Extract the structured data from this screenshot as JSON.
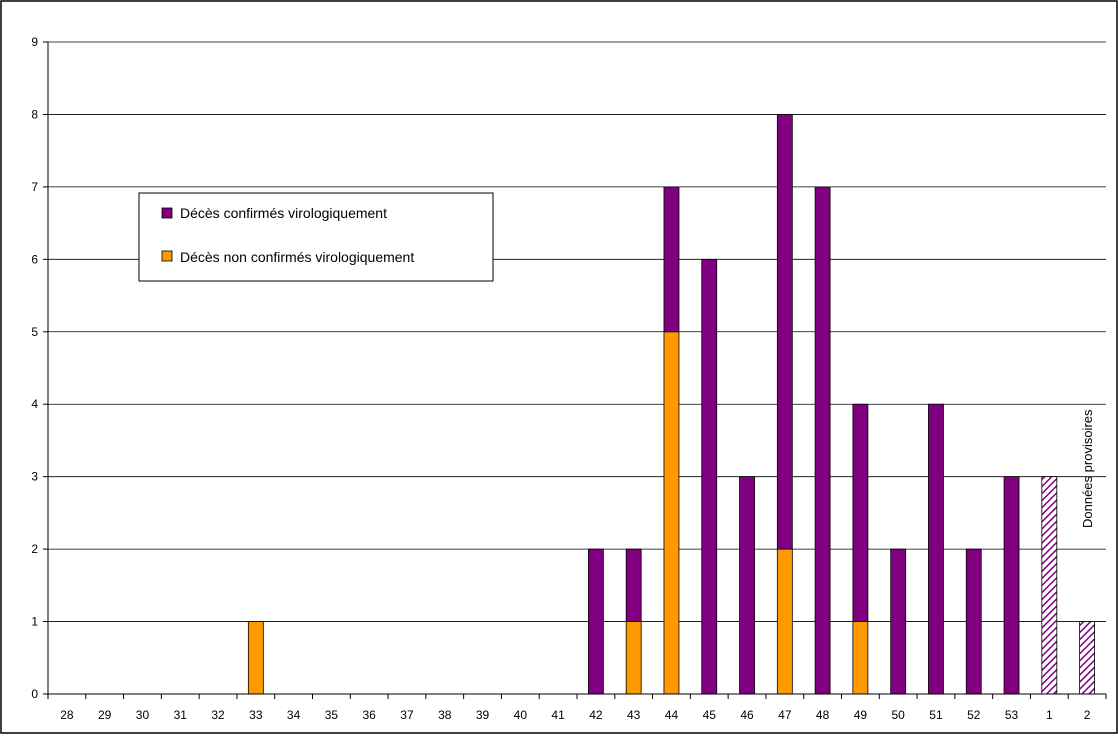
{
  "chart_data": {
    "type": "bar",
    "stacked": true,
    "categories": [
      "28",
      "29",
      "30",
      "31",
      "32",
      "33",
      "34",
      "35",
      "36",
      "37",
      "38",
      "39",
      "40",
      "41",
      "42",
      "43",
      "44",
      "45",
      "46",
      "47",
      "48",
      "49",
      "50",
      "51",
      "52",
      "53",
      "1",
      "2"
    ],
    "series": [
      {
        "name": "Décès non confirmés virologiquement",
        "color": "#ff9900",
        "values": [
          0,
          0,
          0,
          0,
          0,
          1,
          0,
          0,
          0,
          0,
          0,
          0,
          0,
          0,
          0,
          1,
          5,
          0,
          0,
          2,
          0,
          1,
          0,
          0,
          0,
          0,
          0,
          0
        ]
      },
      {
        "name": "Décès confirmés virologiquement",
        "color": "#800080",
        "values": [
          0,
          0,
          0,
          0,
          0,
          0,
          0,
          0,
          0,
          0,
          0,
          0,
          0,
          0,
          2,
          1,
          2,
          6,
          3,
          6,
          7,
          3,
          2,
          4,
          2,
          3,
          3,
          1
        ],
        "provisional_categories": [
          "1",
          "2"
        ],
        "provisional_fill": "hatched"
      }
    ],
    "legend": [
      {
        "label": "Décès confirmés virologiquement",
        "color": "#800080"
      },
      {
        "label": "Décès non confirmés virologiquement",
        "color": "#ff9900"
      }
    ],
    "legend_placement": "upper-left",
    "annotation": "Données provisoires",
    "yticks": [
      "0",
      "1",
      "2",
      "3",
      "4",
      "5",
      "6",
      "7",
      "8",
      "9"
    ],
    "ylim": [
      0,
      9
    ],
    "grid": true,
    "title": "",
    "xlabel": "",
    "ylabel": ""
  }
}
